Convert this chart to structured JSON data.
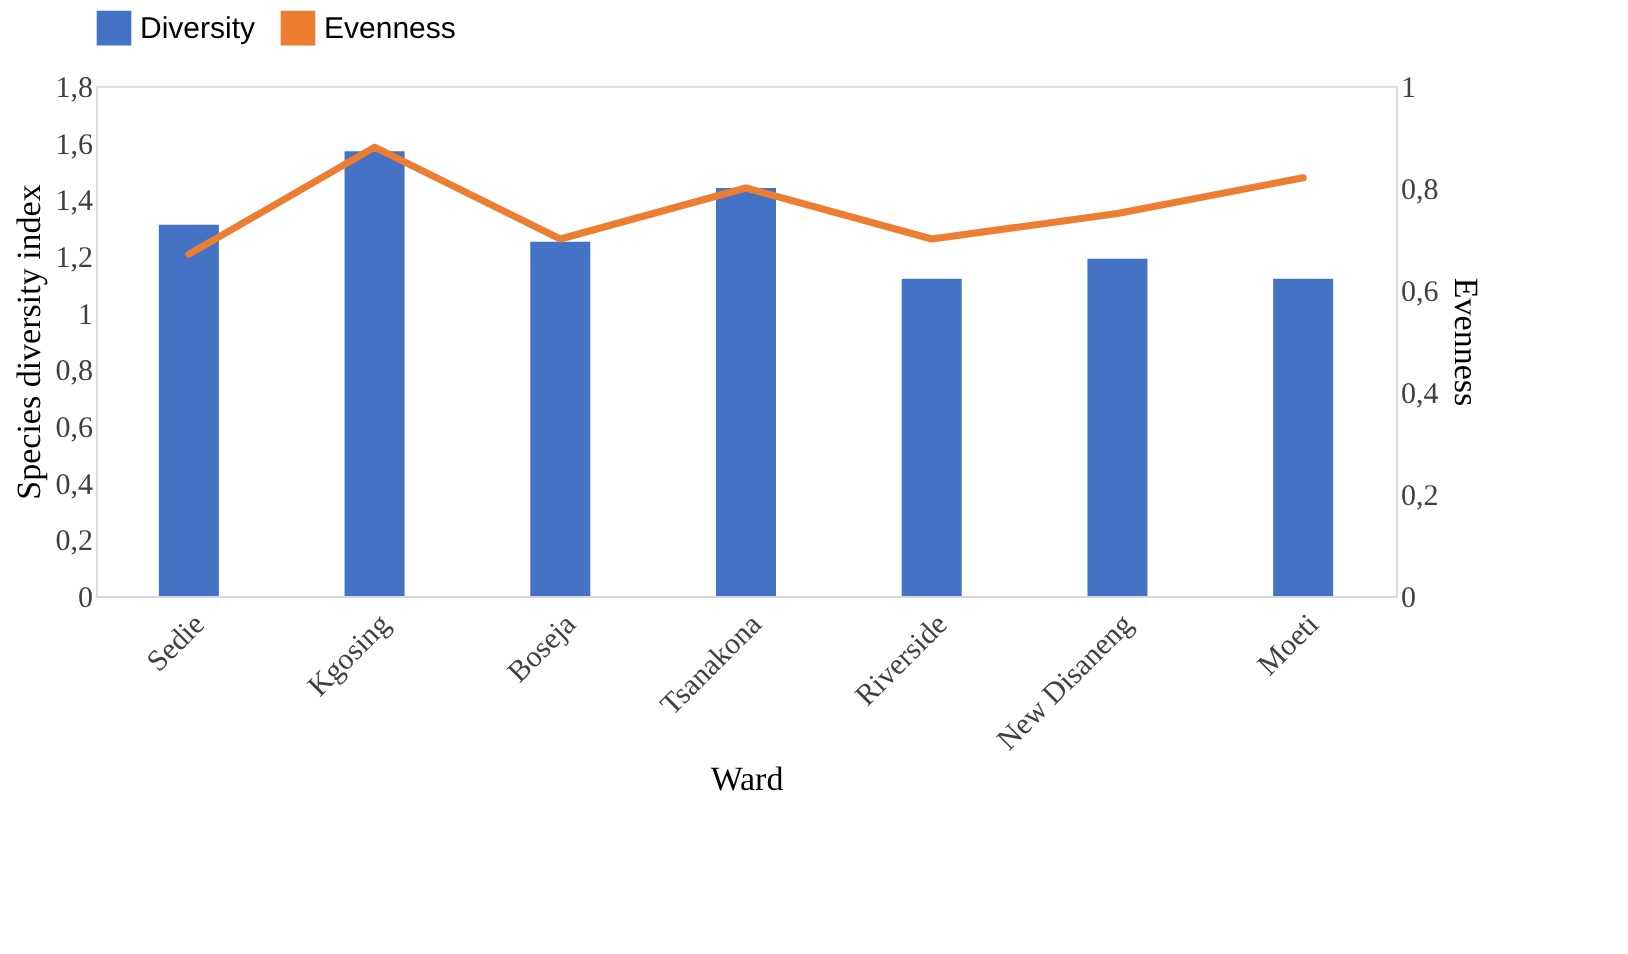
{
  "chart_data": {
    "type": "bar",
    "xlabel": "Ward",
    "ylabel": "Species diversity index",
    "y2label": "Evenness",
    "categories": [
      "Sedie",
      "Kgosing",
      "Boseja",
      "Tsanakona",
      "Riverside",
      "New Disaneng",
      "Moeti"
    ],
    "series": [
      {
        "name": "Diversity",
        "color": "#4472c4",
        "values": [
          1.31,
          1.57,
          1.25,
          1.44,
          1.12,
          1.19,
          1.12
        ]
      },
      {
        "name": "Evenness",
        "color": "#ed7d31",
        "type": "line",
        "axis": "y2",
        "values": [
          0.67,
          0.88,
          0.7,
          0.8,
          0.7,
          0.75,
          0.82
        ]
      }
    ],
    "ylim": [
      0,
      1.8
    ],
    "yticks": [
      0,
      {
        "value": 0.2,
        "label": "0,2"
      },
      {
        "value": 0.4,
        "label": "0,4"
      },
      {
        "value": 0.6,
        "label": "0,6"
      },
      {
        "value": 0.8,
        "label": "0,8"
      },
      1,
      {
        "value": 1.2,
        "label": "1,2"
      },
      {
        "value": 1.4,
        "label": "1,4"
      },
      {
        "value": 1.6,
        "label": "1,6"
      },
      {
        "value": 1.8,
        "label": "1,8"
      }
    ],
    "y2lim": [
      0,
      1
    ],
    "y2ticks": [
      0,
      {
        "value": 0.2,
        "label": "0,2"
      },
      {
        "value": 0.4,
        "label": "0,4"
      },
      {
        "value": 0.6,
        "label": "0,6"
      },
      {
        "value": 0.8,
        "label": "0,8"
      },
      1
    ],
    "legend": "top",
    "grid": false,
    "marker": "none",
    "line_style": "solid"
  }
}
